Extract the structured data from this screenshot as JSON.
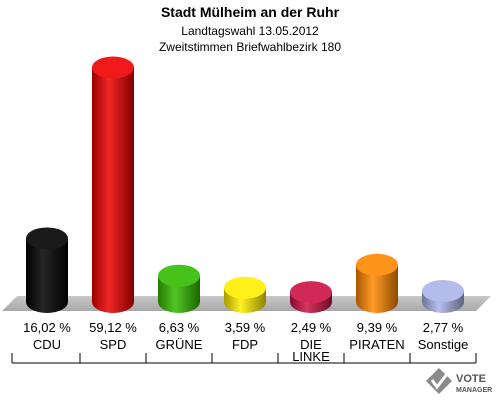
{
  "chart_data": {
    "type": "bar",
    "title": "Stadt Mülheim an der Ruhr",
    "subtitle1": "Landtagswahl 13.05.2012",
    "subtitle2": "Zweitstimmen Briefwahlbezirk 180",
    "categories": [
      "CDU",
      "SPD",
      "GRÜNE",
      "FDP",
      "DIE LINKE",
      "PIRATEN",
      "Sonstige"
    ],
    "category_lines": [
      [
        "CDU"
      ],
      [
        "SPD"
      ],
      [
        "GRÜNE"
      ],
      [
        "FDP"
      ],
      [
        "DIE",
        "LINKE"
      ],
      [
        "PIRATEN"
      ],
      [
        "Sonstige"
      ]
    ],
    "values": [
      16.02,
      59.12,
      6.63,
      3.59,
      2.49,
      9.39,
      2.77
    ],
    "value_labels": [
      "16,02 %",
      "59,12 %",
      "6,63 %",
      "3,59 %",
      "2,49 %",
      "9,39 %",
      "2,77 %"
    ],
    "colors": [
      "#000000",
      "#ee0000",
      "#33bb00",
      "#ffee00",
      "#cc1144",
      "#ff8800",
      "#aab4e8"
    ],
    "ylim": [
      0,
      60
    ],
    "grid": false,
    "legend": "none"
  },
  "logo": {
    "line1": "VOTE",
    "line2": "MANAGER"
  }
}
